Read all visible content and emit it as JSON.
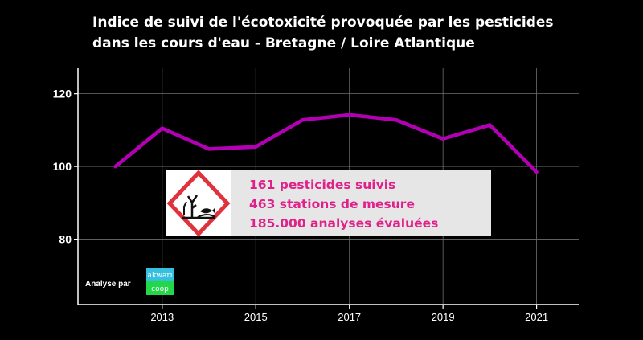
{
  "chart_data": {
    "type": "line",
    "title_lines": [
      "Indice de suivi de l'écotoxicité provoquée par les pesticides",
      "dans les cours d'eau - Bretagne / Loire Atlantique"
    ],
    "xlabel": "",
    "ylabel": "",
    "x": [
      2012,
      2013,
      2014,
      2015,
      2016,
      2017,
      2018,
      2019,
      2020,
      2021
    ],
    "series": [
      {
        "values": [
          100,
          110.5,
          104.8,
          105.4,
          112.8,
          114.2,
          112.8,
          107.6,
          111.4,
          98.5
        ],
        "color": "#b400b4"
      }
    ],
    "xlim": [
      2011.2,
      2021.9
    ],
    "ylim": [
      62,
      127
    ],
    "x_ticks": [
      2013,
      2015,
      2017,
      2019,
      2021
    ],
    "y_ticks": [
      80,
      100,
      120
    ],
    "grid": true,
    "legend": "none",
    "background": "#000000",
    "grid_color": "#6e6e6e"
  },
  "info_box": {
    "lines": [
      "161 pesticides suivis",
      "463 stations de mesure",
      "185.000 analyses évaluées"
    ],
    "text_color": "#e0218a",
    "background": "#e6e6e6",
    "hazard_icon": "environment-hazard-pictogram",
    "hazard_color": "#e0323c"
  },
  "credit": {
    "label": "Analyse par",
    "logo_top": "akwari",
    "logo_bottom": "coop",
    "logo_top_color": "#36c0e0",
    "logo_bottom_color": "#22d84a"
  }
}
